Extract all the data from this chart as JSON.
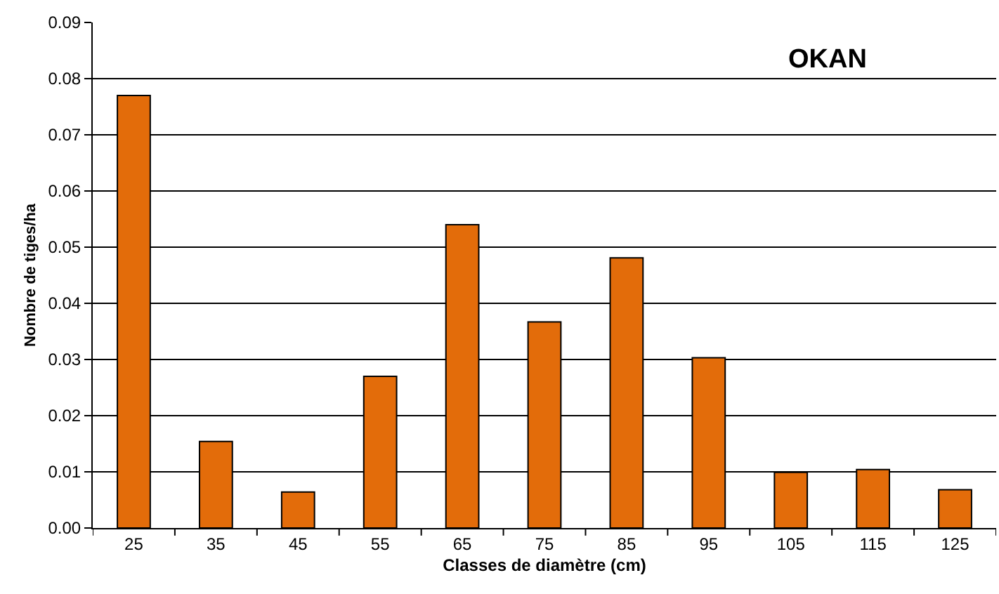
{
  "chart_data": {
    "type": "bar",
    "categories": [
      "25",
      "35",
      "45",
      "55",
      "65",
      "75",
      "85",
      "95",
      "105",
      "115",
      "125"
    ],
    "values": [
      0.077,
      0.0154,
      0.0064,
      0.027,
      0.054,
      0.0367,
      0.0481,
      0.0303,
      0.0099,
      0.0104,
      0.0068
    ],
    "color": "#e36c0a",
    "xlabel": "Classes de diamètre (cm)",
    "ylabel": "Nombre de tiges/ha",
    "annotations": [
      "OKAN"
    ],
    "ylim": [
      0,
      0.09
    ],
    "yticks": [
      {
        "value": 0,
        "label": "0.00"
      },
      {
        "value": 0.01,
        "label": "0.01"
      },
      {
        "value": 0.02,
        "label": "0.02"
      },
      {
        "value": 0.03,
        "label": "0.03"
      },
      {
        "value": 0.04,
        "label": "0.04"
      },
      {
        "value": 0.05,
        "label": "0.05"
      },
      {
        "value": 0.06,
        "label": "0.06"
      },
      {
        "value": 0.07,
        "label": "0.07"
      },
      {
        "value": 0.08,
        "label": "0.08"
      },
      {
        "value": 0.09,
        "label": "0.09"
      }
    ],
    "grid": "y"
  }
}
